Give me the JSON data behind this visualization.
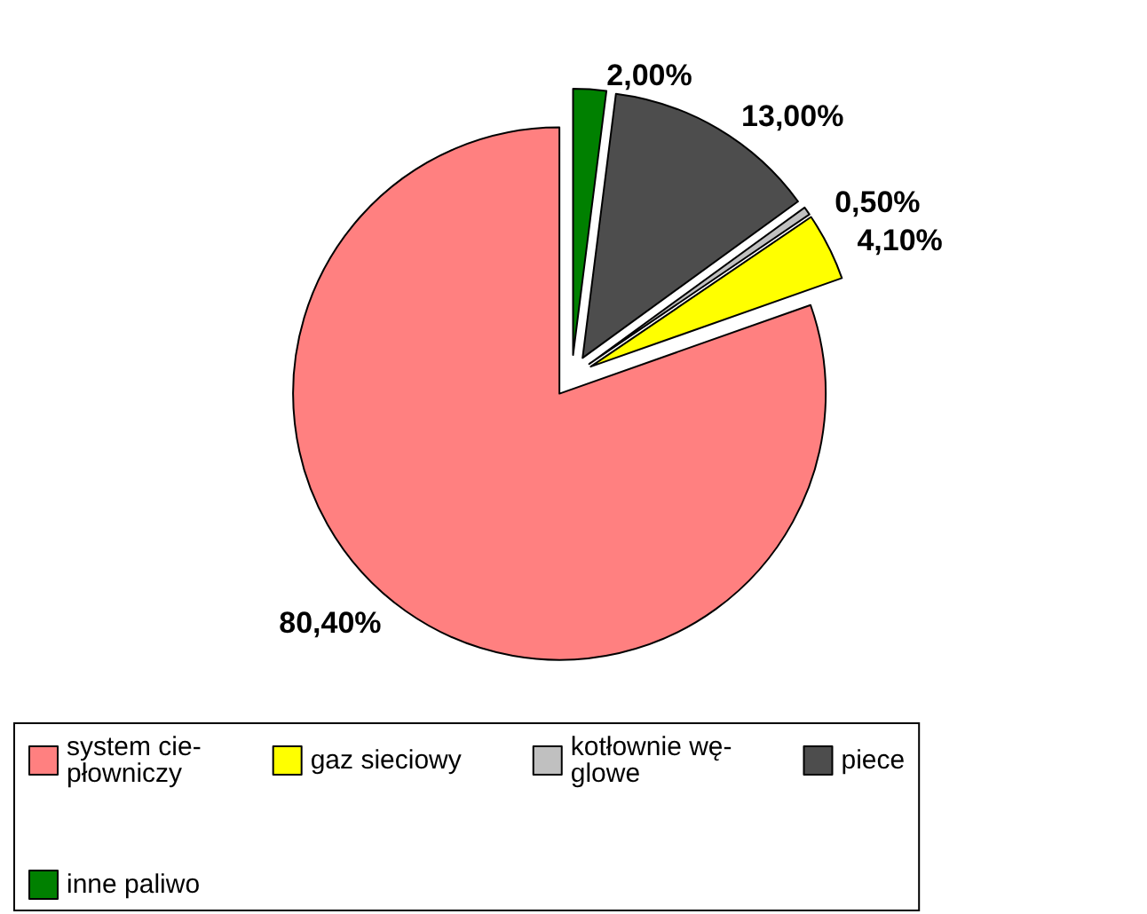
{
  "chart_data": {
    "type": "pie",
    "categories": [
      "system cie-płowniczy",
      "gaz sieciowy",
      "kotłownie wę-glowe",
      "piece",
      "inne paliwo"
    ],
    "values": [
      80.4,
      4.1,
      0.5,
      13.0,
      2.0
    ],
    "colors": [
      "#ff8080",
      "#ffff00",
      "#c0c0c0",
      "#4d4d4d",
      "#008000"
    ],
    "value_labels": [
      "80,40%",
      "4,10%",
      "0,50%",
      "13,00%",
      "2,00%"
    ],
    "legend": "bottom"
  }
}
